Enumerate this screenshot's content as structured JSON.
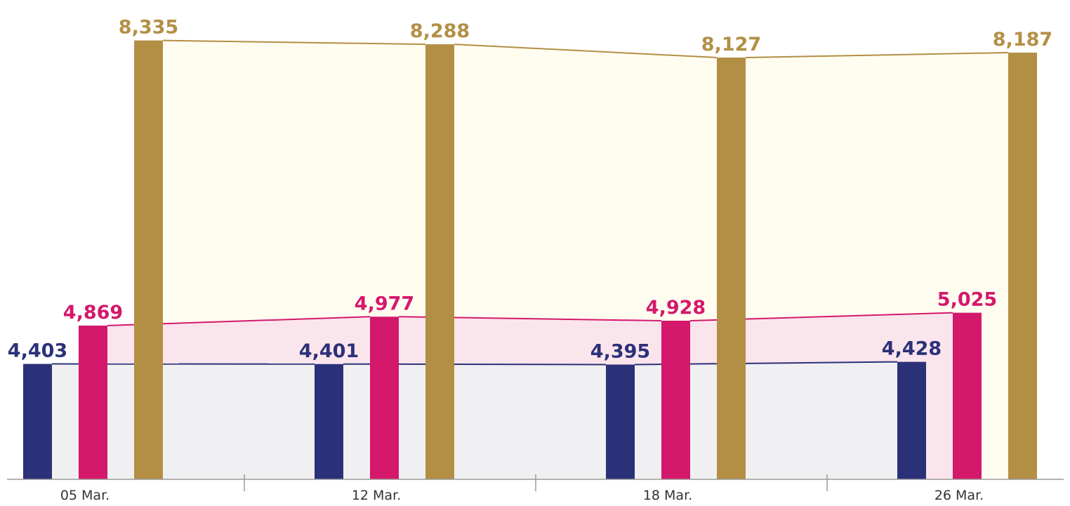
{
  "chart_data": {
    "type": "bar",
    "categories": [
      "05 Mar.",
      "12 Mar.",
      "18 Mar.",
      "26 Mar."
    ],
    "ylim": [
      3000,
      8400
    ],
    "series": [
      {
        "color": "#2b3179",
        "area_color": "#f0f0f2",
        "values": [
          4403,
          4401,
          4395,
          4428
        ],
        "value_labels": [
          "4,403",
          "4,401",
          "4,395",
          "4,428"
        ]
      },
      {
        "color": "#d4186c",
        "area_color": "#fbe5ec",
        "values": [
          4869,
          4977,
          4928,
          5025
        ],
        "value_labels": [
          "4,869",
          "4,977",
          "4,928",
          "5,025"
        ]
      },
      {
        "color": "#b38f45",
        "area_color": "#fffdf0",
        "values": [
          8335,
          8288,
          8127,
          8187
        ],
        "value_labels": [
          "8,335",
          "8,288",
          "8,127",
          "8,187"
        ]
      }
    ]
  }
}
